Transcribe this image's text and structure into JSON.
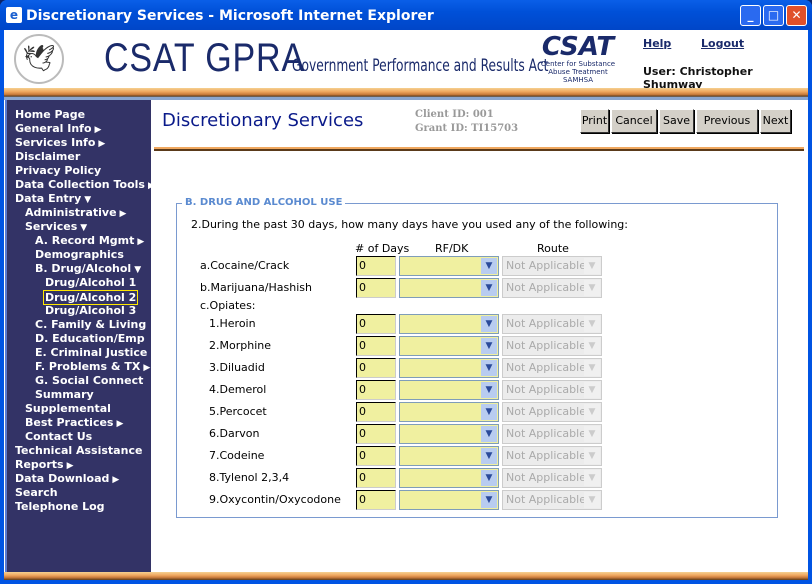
{
  "window": {
    "title": "Discretionary Services - Microsoft Internet Explorer",
    "minimize": "_",
    "maximize": "□",
    "close": "✕"
  },
  "header": {
    "logo_text": "CSAT GPRA",
    "logo_subtitle": "Government Performance and Results Act",
    "csat_logo": "CSAT",
    "csat_line1": "Center for Substance",
    "csat_line2": "Abuse Treatment",
    "csat_line3": "SAMHSA",
    "help": "Help",
    "logout": "Logout",
    "user": "User: Christopher Shumway"
  },
  "sidebar": {
    "items": [
      {
        "label": "Home Page",
        "level": 0
      },
      {
        "label": "General Info",
        "level": 0,
        "arrow": "▶"
      },
      {
        "label": "Services Info",
        "level": 0,
        "arrow": "▶"
      },
      {
        "label": "Disclaimer",
        "level": 0
      },
      {
        "label": "Privacy Policy",
        "level": 0
      },
      {
        "label": "Data Collection Tools",
        "level": 0,
        "arrow": "▶"
      },
      {
        "label": "Data Entry",
        "level": 0,
        "arrow": "▼"
      },
      {
        "label": "Administrative",
        "level": 1,
        "arrow": "▶"
      },
      {
        "label": "Services",
        "level": 1,
        "arrow": "▼"
      },
      {
        "label": "A. Record Mgmt",
        "level": 2,
        "arrow": "▶"
      },
      {
        "label": "Demographics",
        "level": 2
      },
      {
        "label": "B. Drug/Alcohol",
        "level": 2,
        "arrow": "▼"
      },
      {
        "label": "Drug/Alcohol 1",
        "level": 3
      },
      {
        "label": "Drug/Alcohol 2",
        "level": 3,
        "selected": true
      },
      {
        "label": "Drug/Alcohol 3",
        "level": 3
      },
      {
        "label": "C. Family & Living",
        "level": 2
      },
      {
        "label": "D. Education/Emp",
        "level": 2
      },
      {
        "label": "E. Criminal Justice",
        "level": 2
      },
      {
        "label": "F. Problems & TX",
        "level": 2,
        "arrow": "▶"
      },
      {
        "label": "G. Social Connect",
        "level": 2
      },
      {
        "label": "Summary",
        "level": 2
      },
      {
        "label": "Supplemental",
        "level": 1
      },
      {
        "label": "Best Practices",
        "level": 1,
        "arrow": "▶"
      },
      {
        "label": "Contact Us",
        "level": 1
      },
      {
        "label": "Technical Assistance",
        "level": 0
      },
      {
        "label": "Reports",
        "level": 0,
        "arrow": "▶"
      },
      {
        "label": "Data Download",
        "level": 0,
        "arrow": "▶"
      },
      {
        "label": "Search",
        "level": 0
      },
      {
        "label": "Telephone Log",
        "level": 0
      }
    ]
  },
  "main": {
    "title": "Discretionary Services",
    "client_id": "Client ID: 001",
    "grant_id": "Grant ID: TI15703",
    "buttons": {
      "print": "Print",
      "cancel": "Cancel",
      "save": "Save",
      "previous": "Previous",
      "next": "Next"
    },
    "section": "B. DRUG AND ALCOHOL USE",
    "question": "2.During the past 30 days, how many days have you used any of the following:",
    "columns": {
      "days": "# of Days",
      "rfdk": "RF/DK",
      "route": "Route"
    },
    "opiates_label": "c.Opiates:",
    "rows": [
      {
        "label": "a.Cocaine/Crack",
        "days": "0",
        "rfdk": "",
        "route": "Not Applicable"
      },
      {
        "label": "b.Marijuana/Hashish",
        "days": "0",
        "rfdk": "",
        "route": "Not Applicable"
      },
      {
        "label": "1.Heroin",
        "days": "0",
        "rfdk": "",
        "route": "Not Applicable"
      },
      {
        "label": "2.Morphine",
        "days": "0",
        "rfdk": "",
        "route": "Not Applicable"
      },
      {
        "label": "3.Diluadid",
        "days": "0",
        "rfdk": "",
        "route": "Not Applicable"
      },
      {
        "label": "4.Demerol",
        "days": "0",
        "rfdk": "",
        "route": "Not Applicable"
      },
      {
        "label": "5.Percocet",
        "days": "0",
        "rfdk": "",
        "route": "Not Applicable"
      },
      {
        "label": "6.Darvon",
        "days": "0",
        "rfdk": "",
        "route": "Not Applicable"
      },
      {
        "label": "7.Codeine",
        "days": "0",
        "rfdk": "",
        "route": "Not Applicable"
      },
      {
        "label": "8.Tylenol 2,3,4",
        "days": "0",
        "rfdk": "",
        "route": "Not Applicable"
      },
      {
        "label": "9.Oxycontin/Oxycodone",
        "days": "0",
        "rfdk": "",
        "route": "Not Applicable"
      }
    ]
  }
}
